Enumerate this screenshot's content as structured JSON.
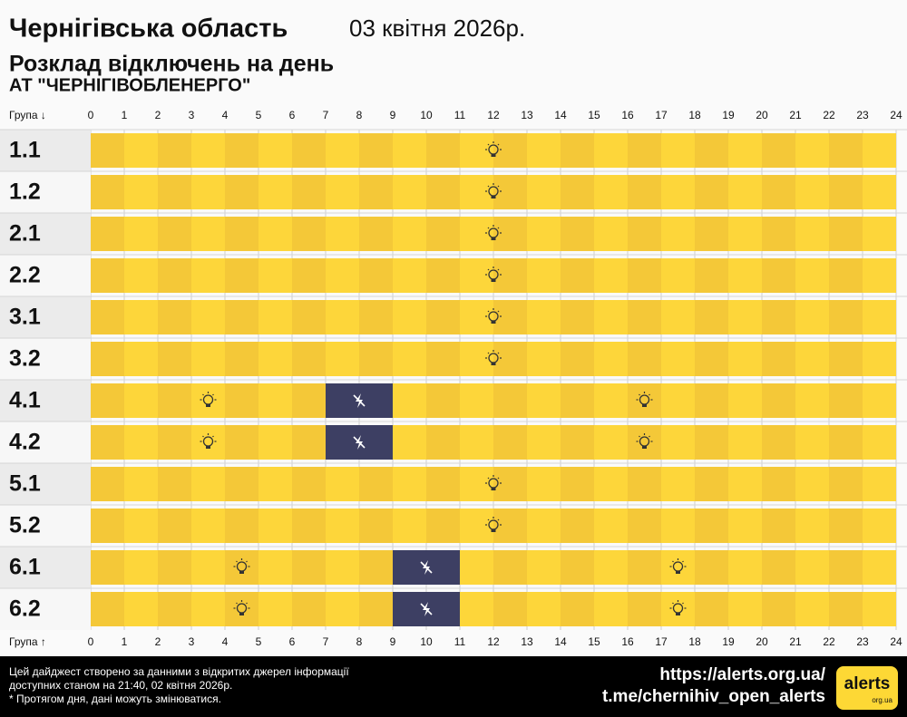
{
  "header": {
    "title": "Чернігівська область",
    "date": "03 квітня 2026р.",
    "subtitle": "Розклад відключень на день",
    "company": "АТ \"ЧЕРНІГІВОБЛЕНЕРГО\""
  },
  "schedule": {
    "top_axis_label": "Група ↓",
    "bottom_axis_label": "Група ↑",
    "hours": [
      0,
      1,
      2,
      3,
      4,
      5,
      6,
      7,
      8,
      9,
      10,
      11,
      12,
      13,
      14,
      15,
      16,
      17,
      18,
      19,
      20,
      21,
      22,
      23,
      24
    ],
    "groups": [
      {
        "label": "1.1",
        "outages": []
      },
      {
        "label": "1.2",
        "outages": []
      },
      {
        "label": "2.1",
        "outages": []
      },
      {
        "label": "2.2",
        "outages": []
      },
      {
        "label": "3.1",
        "outages": []
      },
      {
        "label": "3.2",
        "outages": []
      },
      {
        "label": "4.1",
        "outages": [
          {
            "start": 7,
            "end": 9
          }
        ]
      },
      {
        "label": "4.2",
        "outages": [
          {
            "start": 7,
            "end": 9
          }
        ]
      },
      {
        "label": "5.1",
        "outages": []
      },
      {
        "label": "5.2",
        "outages": []
      },
      {
        "label": "6.1",
        "outages": [
          {
            "start": 9,
            "end": 11
          }
        ]
      },
      {
        "label": "6.2",
        "outages": [
          {
            "start": 9,
            "end": 11
          }
        ]
      }
    ]
  },
  "footer": {
    "notes": [
      "Цей дайджест створено за данними з відкритих джерел інформації",
      "доступних станом на 21:40, 02 квітня 2026р.",
      "* Протягом дня, дані можуть змінюватися."
    ],
    "links": [
      "https://alerts.org.ua/",
      "t.me/chernihiv_open_alerts"
    ],
    "logo": "alerts",
    "logo_domain": "org.ua"
  }
}
